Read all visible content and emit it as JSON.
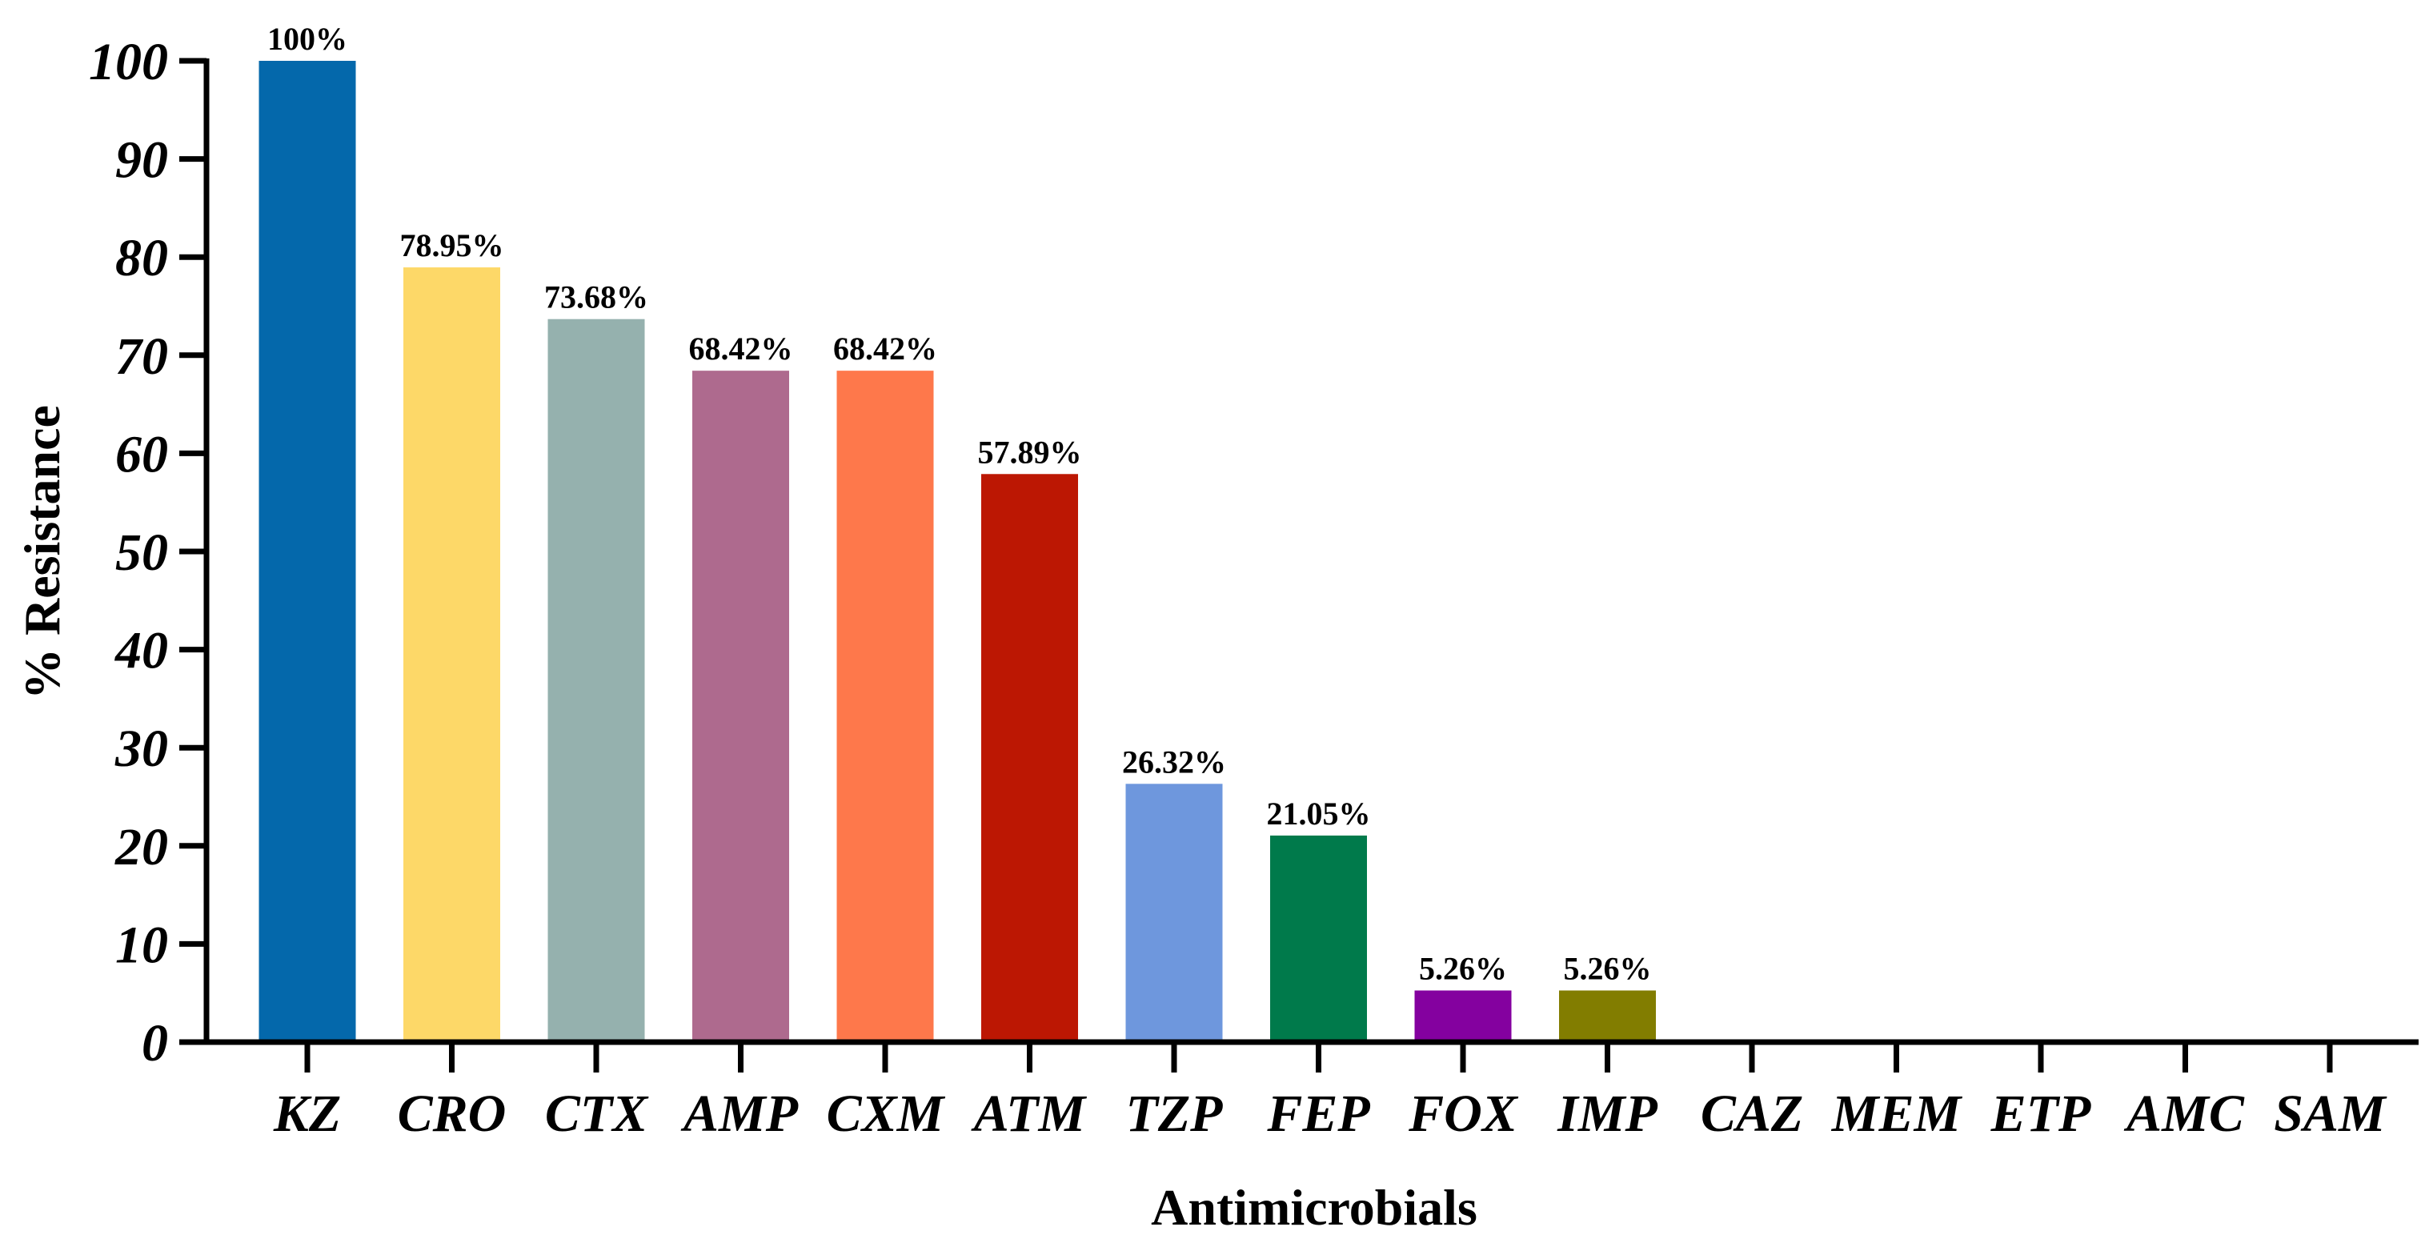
{
  "chart_data": {
    "type": "bar",
    "xlabel": "Antimicrobials",
    "ylabel": "% Resistance",
    "ylim": [
      0,
      100
    ],
    "yticks": [
      0,
      10,
      20,
      30,
      40,
      50,
      60,
      70,
      80,
      90,
      100
    ],
    "categories": [
      "KZ",
      "CRO",
      "CTX",
      "AMP",
      "CXM",
      "ATM",
      "TZP",
      "FEP",
      "FOX",
      "IMP",
      "CAZ",
      "MEM",
      "ETP",
      "AMC",
      "SAM"
    ],
    "values": [
      100,
      78.95,
      73.68,
      68.42,
      68.42,
      57.89,
      26.32,
      21.05,
      5.26,
      5.26,
      0,
      0,
      0,
      0,
      0
    ],
    "data_labels": [
      "100%",
      "78.95%",
      "73.68%",
      "68.42%",
      "68.42%",
      "57.89%",
      "26.32%",
      "21.05%",
      "5.26%",
      "5.26%",
      "",
      "",
      "",
      "",
      ""
    ],
    "colors": [
      "#0468ab",
      "#fdd868",
      "#95b1ae",
      "#ae6a8e",
      "#fe784b",
      "#bc1703",
      "#6e97dd",
      "#007a4b",
      "#84019f",
      "#827d00",
      "#000000",
      "#000000",
      "#000000",
      "#000000",
      "#000000"
    ],
    "grid": false,
    "legend": "none"
  }
}
